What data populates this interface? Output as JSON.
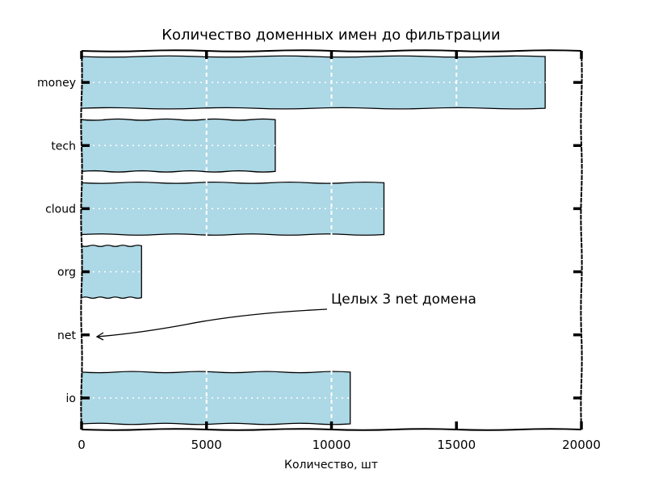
{
  "chart_data": {
    "type": "bar",
    "orientation": "horizontal",
    "style": "xkcd",
    "title": "Количество доменных имен до фильтрации",
    "xlabel": "Количество, шт",
    "ylabel": "",
    "categories": [
      "money",
      "tech",
      "cloud",
      "org",
      "net",
      "io"
    ],
    "values": [
      18550,
      7750,
      12100,
      2400,
      3,
      10750
    ],
    "xlim": [
      0,
      20000
    ],
    "xticks": [
      "0",
      "5000",
      "10000",
      "15000",
      "20000"
    ],
    "grid": true,
    "bar_color": "#add8e6",
    "annotations": [
      {
        "text": "Целых 3 net домена",
        "target_category": "net",
        "target_value": 3,
        "arrow": true
      }
    ]
  },
  "colors": {
    "bar": "#add8e6",
    "edge": "#000000",
    "grid": "#ffffff"
  }
}
